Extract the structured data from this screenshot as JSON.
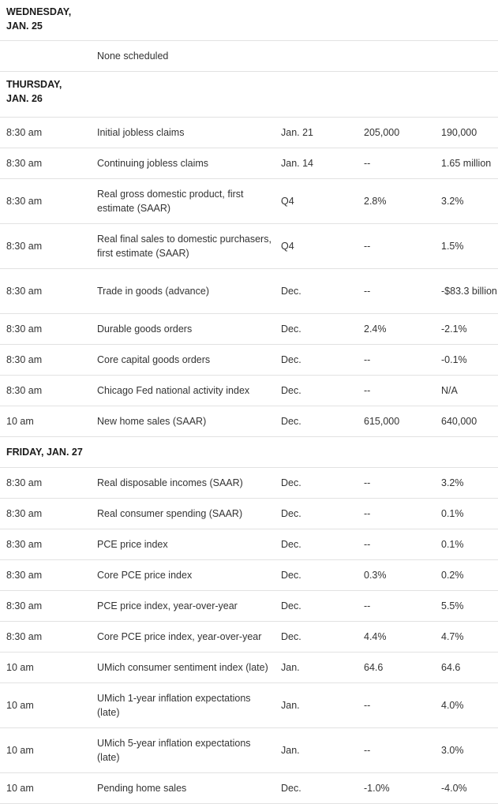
{
  "calendar": {
    "days": [
      {
        "label": "WEDNESDAY, JAN. 25",
        "rows": [
          {
            "time": "",
            "event": "None scheduled",
            "period": "",
            "forecast": "",
            "previous": ""
          }
        ]
      },
      {
        "label": "THURSDAY, JAN. 26",
        "rows": [
          {
            "time": "8:30 am",
            "event": "Initial jobless claims",
            "period": "Jan. 21",
            "forecast": "205,000",
            "previous": "190,000"
          },
          {
            "time": "8:30 am",
            "event": "Continuing jobless claims",
            "period": "Jan. 14",
            "forecast": "--",
            "previous": "1.65 million"
          },
          {
            "time": "8:30 am",
            "event": "Real gross domestic product, first estimate (SAAR)",
            "period": "Q4",
            "forecast": "2.8%",
            "previous": "3.2%"
          },
          {
            "time": "8:30 am",
            "event": "Real final sales to domestic purchasers, first estimate (SAAR)",
            "period": "Q4",
            "forecast": "--",
            "previous": "1.5%"
          },
          {
            "time": "8:30 am",
            "event": "Trade in goods (advance)",
            "period": "Dec.",
            "forecast": "--",
            "previous": "-$83.3 billion"
          },
          {
            "time": "8:30 am",
            "event": "Durable goods orders",
            "period": "Dec.",
            "forecast": "2.4%",
            "previous": "-2.1%"
          },
          {
            "time": "8:30 am",
            "event": "Core capital goods orders",
            "period": "Dec.",
            "forecast": "--",
            "previous": "-0.1%"
          },
          {
            "time": "8:30 am",
            "event": "Chicago Fed national activity index",
            "period": "Dec.",
            "forecast": "--",
            "previous": "N/A"
          },
          {
            "time": "10 am",
            "event": "New home sales (SAAR)",
            "period": "Dec.",
            "forecast": "615,000",
            "previous": "640,000"
          }
        ]
      },
      {
        "label": "FRIDAY, JAN. 27",
        "rows": [
          {
            "time": "8:30 am",
            "event": "Real disposable incomes (SAAR)",
            "period": "Dec.",
            "forecast": "--",
            "previous": "3.2%"
          },
          {
            "time": "8:30 am",
            "event": "Real consumer spending (SAAR)",
            "period": "Dec.",
            "forecast": "--",
            "previous": "0.1%"
          },
          {
            "time": "8:30 am",
            "event": "PCE price index",
            "period": "Dec.",
            "forecast": "--",
            "previous": "0.1%"
          },
          {
            "time": "8:30 am",
            "event": "Core PCE price index",
            "period": "Dec.",
            "forecast": "0.3%",
            "previous": "0.2%"
          },
          {
            "time": "8:30 am",
            "event": "PCE price index, year-over-year",
            "period": "Dec.",
            "forecast": "--",
            "previous": "5.5%"
          },
          {
            "time": "8:30 am",
            "event": "Core PCE price index, year-over-year",
            "period": "Dec.",
            "forecast": "4.4%",
            "previous": "4.7%"
          },
          {
            "time": "10 am",
            "event": "UMich consumer sentiment index (late)",
            "period": "Jan.",
            "forecast": "64.6",
            "previous": "64.6"
          },
          {
            "time": "10 am",
            "event": "UMich 1-year inflation expectations (late)",
            "period": "Jan.",
            "forecast": "--",
            "previous": "4.0%"
          },
          {
            "time": "10 am",
            "event": "UMich 5-year inflation expectations (late)",
            "period": "Jan.",
            "forecast": "--",
            "previous": "3.0%"
          },
          {
            "time": "10 am",
            "event": "Pending home sales",
            "period": "Dec.",
            "forecast": "-1.0%",
            "previous": "-4.0%"
          }
        ]
      }
    ]
  }
}
